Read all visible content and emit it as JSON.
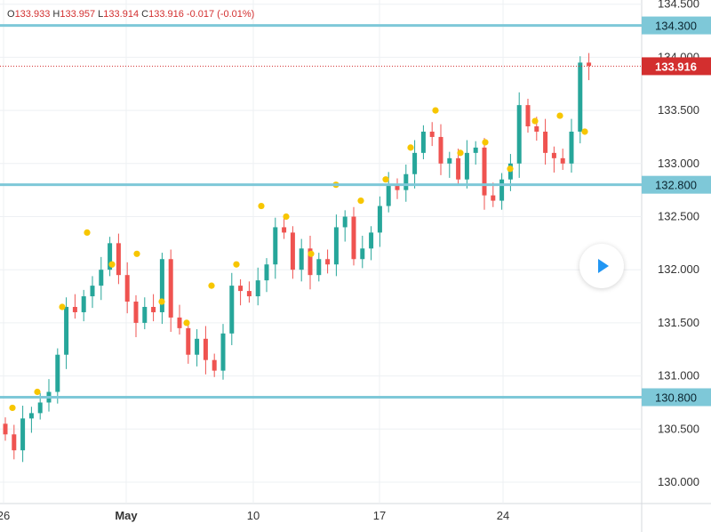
{
  "ohlc_header": {
    "o_label": "O",
    "o_value": "133.933",
    "h_label": "H",
    "h_value": "133.957",
    "l_label": "L",
    "l_value": "133.914",
    "c_label": "C",
    "c_value": "133.916",
    "change": "-0.017 (-0.01%)"
  },
  "colors": {
    "up": "#26a69a",
    "down": "#ef5350",
    "level_line": "#7ec8d8",
    "marker": "#f7c600",
    "price_tag": "#d32f2f",
    "grid": "#eef0f3"
  },
  "play_button_icon": "play-icon",
  "chart_data": {
    "type": "candlestick",
    "title": "",
    "xlabel": "",
    "ylabel": "",
    "x_ticks": [
      "26",
      "May",
      "10",
      "17",
      "24"
    ],
    "y_ticks": [
      "130.000",
      "130.500",
      "131.000",
      "131.500",
      "132.000",
      "132.500",
      "133.000",
      "133.500",
      "134.000",
      "134.500"
    ],
    "ylim": [
      129.85,
      134.55
    ],
    "grid": true,
    "levels": [
      {
        "value": 134.3,
        "label": "134.300"
      },
      {
        "value": 132.8,
        "label": "132.800"
      },
      {
        "value": 130.8,
        "label": "130.800"
      }
    ],
    "last_price": {
      "value": 133.916,
      "label": "133.916"
    },
    "candles_close_approx": [
      130.45,
      130.3,
      130.6,
      130.65,
      130.75,
      130.85,
      131.2,
      131.65,
      131.6,
      131.75,
      131.85,
      132.0,
      132.25,
      131.95,
      131.7,
      131.5,
      131.65,
      131.6,
      132.1,
      131.55,
      131.45,
      131.2,
      131.35,
      131.15,
      131.05,
      131.4,
      131.85,
      131.8,
      131.75,
      131.9,
      132.05,
      132.4,
      132.35,
      132.0,
      132.2,
      131.95,
      132.1,
      132.05,
      132.4,
      132.5,
      132.1,
      132.2,
      132.35,
      132.6,
      132.8,
      132.75,
      132.9,
      133.1,
      133.3,
      133.25,
      133.0,
      133.05,
      132.85,
      133.1,
      133.15,
      132.7,
      132.65,
      132.85,
      133.0,
      133.55,
      133.35,
      133.3,
      133.1,
      133.05,
      133.0,
      133.3,
      133.95,
      133.92
    ]
  },
  "markers_approx": [
    130.7,
    130.85,
    131.65,
    132.35,
    132.05,
    132.15,
    131.7,
    131.5,
    131.85,
    132.05,
    132.6,
    132.5,
    132.15,
    132.8,
    132.65,
    132.85,
    133.15,
    133.5,
    133.1,
    133.2,
    132.95,
    133.4,
    133.45,
    133.3
  ]
}
